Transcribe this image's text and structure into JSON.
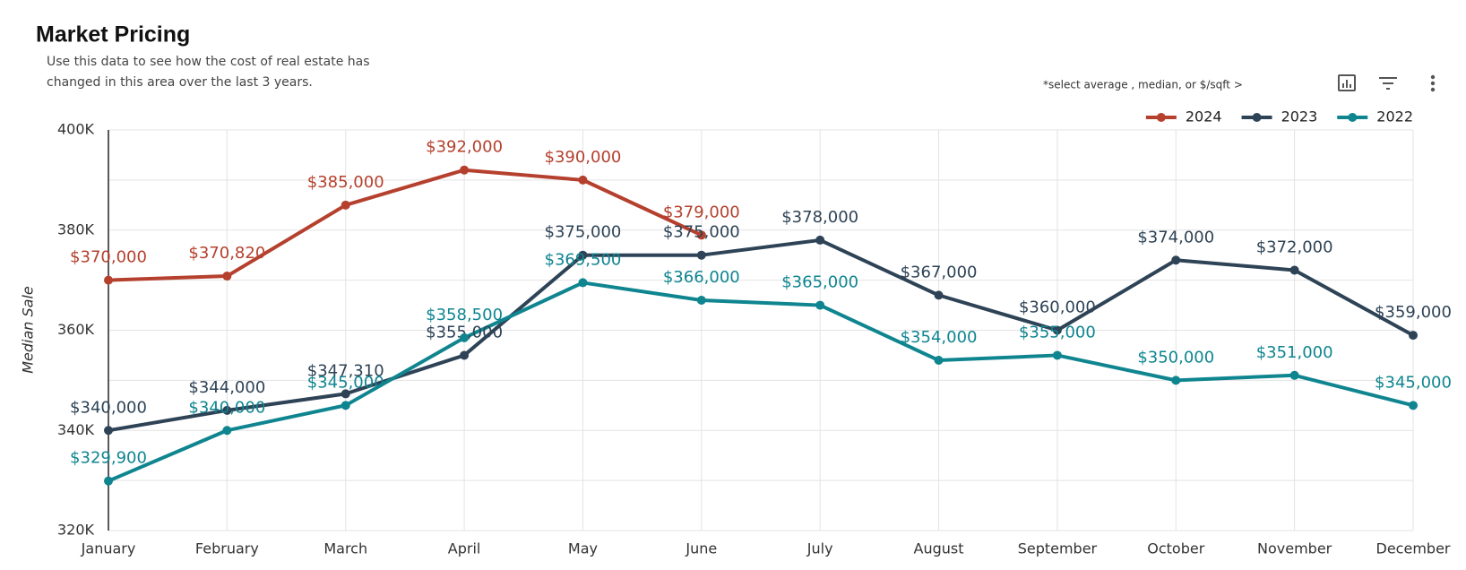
{
  "chart_data": {
    "type": "line",
    "title": "Market Pricing",
    "subtitle": [
      "Use this data to see how the cost of real estate has",
      "changed in this area over the last 3 years."
    ],
    "note": "*select average , median, or $/sqft  >",
    "y_label": "Median Sale",
    "categories": [
      "January",
      "February",
      "March",
      "April",
      "May",
      "June",
      "July",
      "August",
      "September",
      "October",
      "November",
      "December"
    ],
    "series": [
      {
        "name": "2024",
        "color": "#b5402e",
        "values": [
          370000,
          370820,
          385000,
          392000,
          390000,
          379000,
          null,
          null,
          null,
          null,
          null,
          null
        ],
        "value_labels": [
          "$370,000",
          "$370,820",
          "$385,000",
          "$392,000",
          "$390,000",
          "$379,000",
          null,
          null,
          null,
          null,
          null,
          null
        ]
      },
      {
        "name": "2023",
        "color": "#2e4356",
        "values": [
          340000,
          344000,
          347310,
          355000,
          375000,
          375000,
          378000,
          367000,
          360000,
          374000,
          372000,
          359000
        ],
        "value_labels": [
          "$340,000",
          "$344,000",
          "$347,310",
          "$355,000",
          "$375,000",
          "$375,000",
          "$378,000",
          "$367,000",
          "$360,000",
          "$374,000",
          "$372,000",
          "$359,000"
        ]
      },
      {
        "name": "2022",
        "color": "#0f8590",
        "values": [
          329900,
          340000,
          345000,
          358500,
          369500,
          366000,
          365000,
          354000,
          355000,
          350000,
          351000,
          345000
        ],
        "value_labels": [
          "$329,900",
          "$340,000",
          "$345,000",
          "$358,500",
          "$369,500",
          "$366,000",
          "$365,000",
          "$354,000",
          "$355,000",
          "$350,000",
          "$351,000",
          "$345,000"
        ]
      }
    ],
    "ylim": [
      320000,
      400000
    ],
    "yticks": [
      {
        "value": 320000,
        "label": "320K"
      },
      {
        "value": 340000,
        "label": "340K"
      },
      {
        "value": 360000,
        "label": "360K"
      },
      {
        "value": 380000,
        "label": "380K"
      },
      {
        "value": 400000,
        "label": "400K"
      }
    ],
    "minor_yticks": [
      330000,
      350000,
      370000,
      390000
    ],
    "grid": true,
    "legend": "top-right"
  }
}
